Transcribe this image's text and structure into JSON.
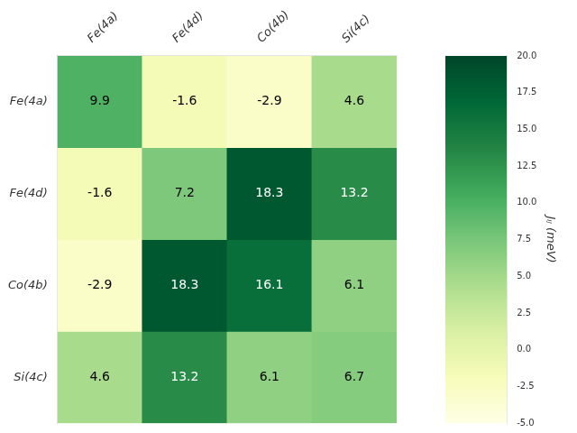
{
  "chart_data": {
    "type": "heatmap",
    "categories": [
      "Fe(4a)",
      "Fe(4d)",
      "Co(4b)",
      "Si(4c)"
    ],
    "values": [
      [
        9.9,
        -1.6,
        -2.9,
        4.6
      ],
      [
        -1.6,
        7.2,
        18.3,
        13.2
      ],
      [
        -2.9,
        18.3,
        16.1,
        6.1
      ],
      [
        4.6,
        13.2,
        6.1,
        6.7
      ]
    ],
    "color": "YlGn",
    "colorbar_label": "Jᵢⱼ (meV)",
    "colorbar_lim": [
      -5,
      20
    ],
    "colorbar_ticks": [
      {
        "value": -5,
        "label": "-5.0"
      },
      -2.5,
      {
        "value": 0,
        "label": "0.0"
      },
      2.5,
      {
        "value": 5,
        "label": "5.0"
      },
      7.5,
      {
        "value": 10,
        "label": "10.0"
      },
      12.5,
      {
        "value": 15,
        "label": "15.0"
      },
      17.5,
      {
        "value": 20,
        "label": "20.0"
      }
    ],
    "data_labels": true,
    "grid": false
  }
}
